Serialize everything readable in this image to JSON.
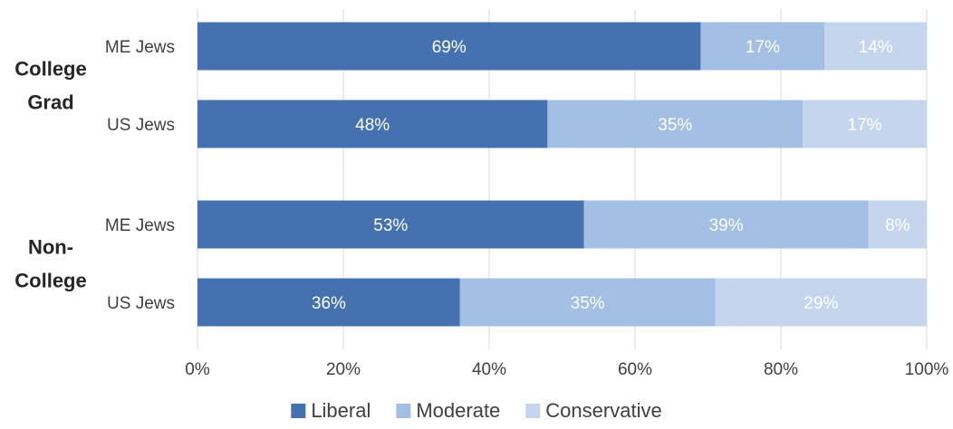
{
  "chart_data": {
    "type": "bar",
    "orientation": "horizontal",
    "stacked": true,
    "groups": [
      {
        "label_lines": [
          "College",
          "Grad"
        ],
        "categories": [
          "ME Jews",
          "US Jews"
        ]
      },
      {
        "label_lines": [
          "Non-",
          "College"
        ],
        "categories": [
          "ME Jews",
          "US Jews"
        ]
      }
    ],
    "series": [
      {
        "name": "Liberal",
        "color": "#4472b0",
        "values": [
          69,
          48,
          53,
          36
        ]
      },
      {
        "name": "Moderate",
        "color": "#a3c0e4",
        "values": [
          17,
          35,
          39,
          35
        ]
      },
      {
        "name": "Conservative",
        "color": "#c5d5ee",
        "values": [
          14,
          17,
          8,
          29
        ]
      }
    ],
    "xlim": [
      0,
      100
    ],
    "xticks": [
      "0%",
      "20%",
      "40%",
      "60%",
      "80%",
      "100%"
    ],
    "value_format": "%",
    "grid": true,
    "legend_position": "bottom"
  }
}
